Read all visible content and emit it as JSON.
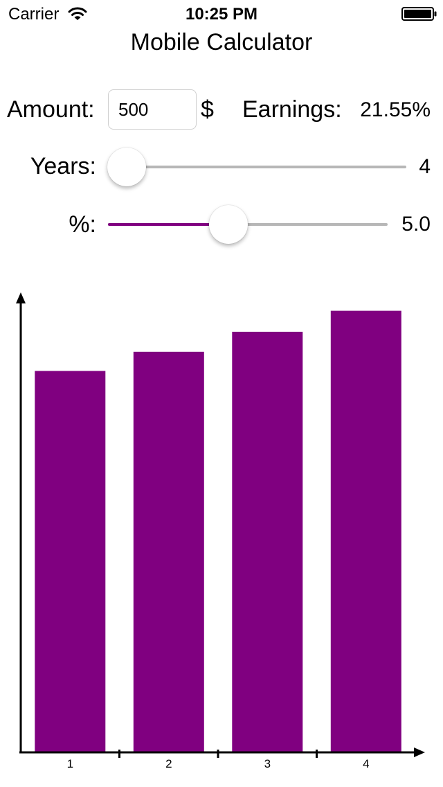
{
  "status_bar": {
    "carrier": "Carrier",
    "time": "10:25 PM",
    "wifi_icon": "wifi-icon",
    "battery_icon": "battery-icon"
  },
  "title": "Mobile Calculator",
  "form": {
    "amount_label": "Amount:",
    "amount_value": "500",
    "currency_symbol": "$",
    "earnings_label": "Earnings:",
    "earnings_value": "21.55%",
    "years_label": "Years:",
    "years_value": "4",
    "years_slider_fraction": 0.0,
    "percent_label": "%:",
    "percent_value": "5.0",
    "percent_slider_fraction": 0.43
  },
  "colors": {
    "accent": "#800080",
    "track": "#b7b7b7"
  },
  "chart_data": {
    "type": "bar",
    "categories": [
      "1",
      "2",
      "3",
      "4"
    ],
    "values": [
      525,
      551.25,
      578.81,
      607.75
    ],
    "ylim": [
      0,
      635
    ],
    "bar_color": "#800080",
    "grid": false
  }
}
